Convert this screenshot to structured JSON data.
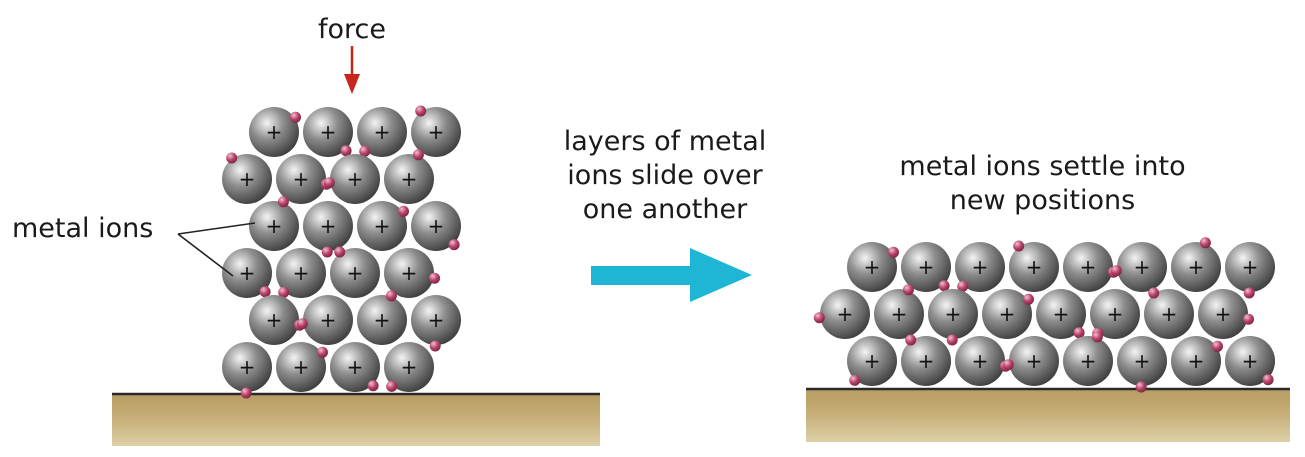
{
  "labels": {
    "force": "force",
    "metal_ions": "metal ions",
    "slide": [
      "layers of metal",
      "ions slide over",
      "one another"
    ],
    "settle": [
      "metal ions settle into",
      "new positions"
    ],
    "ion_charge": "+"
  },
  "colors": {
    "ion": "#8e8e8e",
    "ion_highlight": "#f4f4f4",
    "ion_shadow": "#3e3e3e",
    "electron": "#b8426a",
    "force_arrow": "#c8261c",
    "slide_arrow": "#1fb6d6",
    "ground": "#c6ad74",
    "ground_edge": "#2a2a2a"
  },
  "structures": {
    "before": {
      "columns": 4,
      "rows": 6
    },
    "after": {
      "columns": 8,
      "rows": 3
    }
  },
  "icons": {
    "force_arrow": "arrow-down-icon",
    "slide_arrow": "arrow-right-icon"
  }
}
